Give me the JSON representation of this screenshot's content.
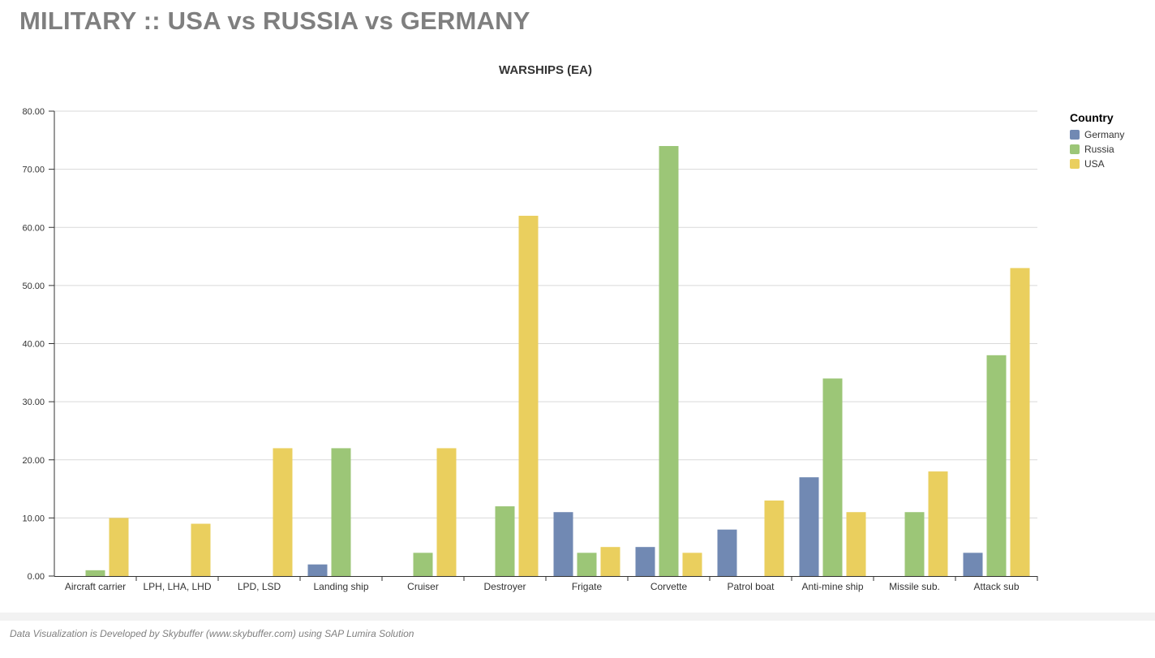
{
  "page_title": "MILITARY :: USA vs RUSSIA vs GERMANY",
  "footer": "Data Visualization is Developed by Skybuffer (www.skybuffer.com) using SAP Lumira Solution",
  "chart_data": {
    "type": "bar",
    "title": "WARSHIPS (EA)",
    "xlabel": "",
    "ylabel": "",
    "ylim": [
      0,
      80
    ],
    "yticks": [
      "0.00",
      "10.00",
      "20.00",
      "30.00",
      "40.00",
      "50.00",
      "60.00",
      "70.00",
      "80.00"
    ],
    "grid": true,
    "legend_title": "Country",
    "legend_position": "top-right",
    "categories": [
      "Aircraft carrier",
      "LPH, LHA, LHD",
      "LPD, LSD",
      "Landing ship",
      "Cruiser",
      "Destroyer",
      "Frigate",
      "Corvette",
      "Patrol boat",
      "Anti-mine ship",
      "Missile sub.",
      "Attack sub"
    ],
    "series": [
      {
        "name": "Germany",
        "color": "#7189b3",
        "values": [
          0,
          0,
          0,
          2,
          0,
          0,
          11,
          5,
          8,
          17,
          0,
          4
        ]
      },
      {
        "name": "Russia",
        "color": "#9cc677",
        "values": [
          1,
          0,
          0,
          22,
          4,
          12,
          4,
          74,
          0,
          34,
          11,
          38
        ]
      },
      {
        "name": "USA",
        "color": "#eacf5e",
        "values": [
          10,
          9,
          22,
          0,
          22,
          62,
          5,
          4,
          13,
          11,
          18,
          53
        ]
      }
    ]
  }
}
